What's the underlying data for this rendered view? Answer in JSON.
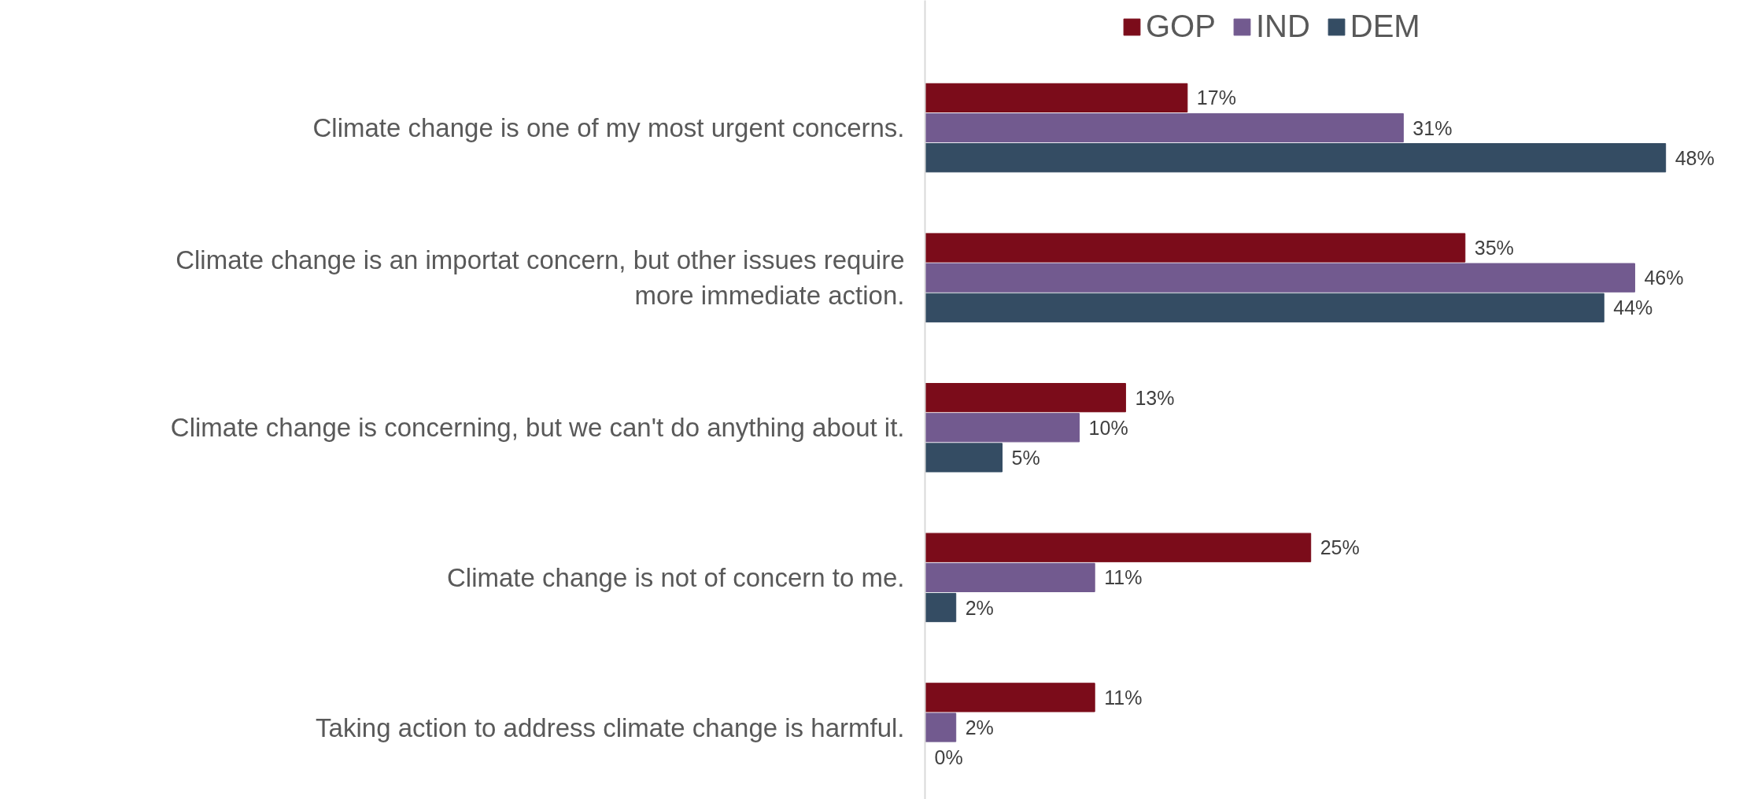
{
  "chart_data": {
    "type": "bar",
    "orientation": "horizontal",
    "categories": [
      "Climate change is one of my most urgent concerns.",
      "Climate change is an importat concern, but other issues require more immediate action.",
      "Climate change is concerning, but we can't do anything about it.",
      "Climate change is not of concern to me.",
      "Taking action to address climate change is harmful."
    ],
    "series": [
      {
        "name": "GOP",
        "color": "#7b0c1a",
        "values": [
          17,
          35,
          13,
          25,
          11
        ],
        "value_labels": [
          "17%",
          "35%",
          "13%",
          "25%",
          "11%"
        ]
      },
      {
        "name": "IND",
        "color": "#725a8f",
        "values": [
          31,
          46,
          10,
          11,
          2
        ],
        "value_labels": [
          "31%",
          "46%",
          "10%",
          "11%",
          "2%"
        ]
      },
      {
        "name": "DEM",
        "color": "#344c63",
        "values": [
          48,
          44,
          5,
          2,
          0
        ],
        "value_labels": [
          "48%",
          "44%",
          "5%",
          "2%",
          "0%"
        ]
      }
    ],
    "legend": "top",
    "grid": false
  }
}
